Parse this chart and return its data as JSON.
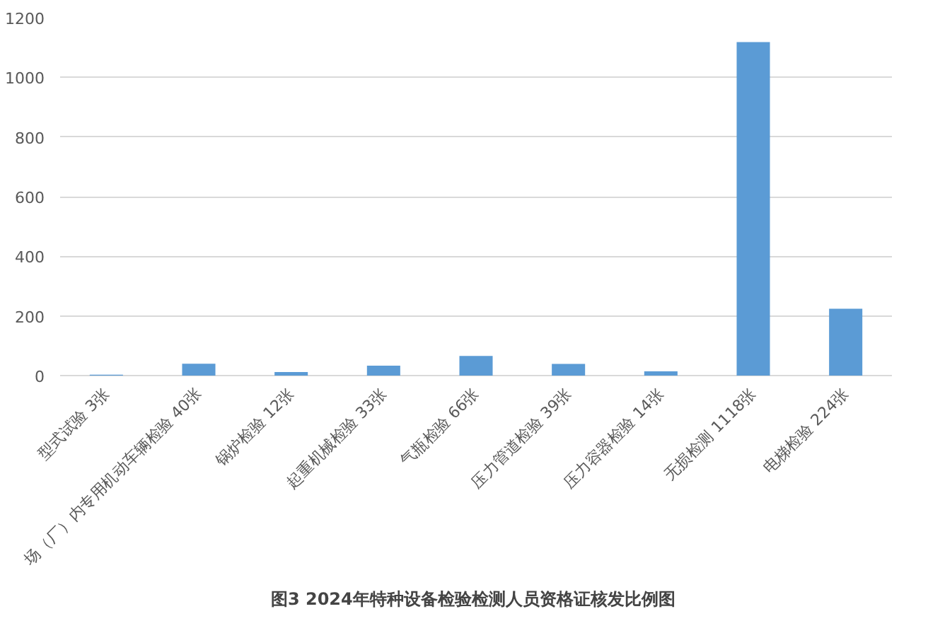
{
  "chart_data": {
    "type": "bar",
    "title": "图3  2024年特种设备检验检测人员资格证核发比例图",
    "categories": [
      "型式试验 3张",
      "场（厂）内专用机动车辆检验 40张",
      "锅炉检验 12张",
      "起重机械检验 33张",
      "气瓶检验 66张",
      "压力管道检验 39张",
      "压力容器检验 14张",
      "无损检测 1118张",
      "电梯检验 224张"
    ],
    "values": [
      3,
      40,
      12,
      33,
      66,
      39,
      14,
      1118,
      224
    ],
    "color": "#5b9bd5",
    "ylim": [
      0,
      1200
    ],
    "yticks": [
      0,
      200,
      400,
      600,
      800,
      1000,
      1200
    ],
    "grid": "y"
  }
}
